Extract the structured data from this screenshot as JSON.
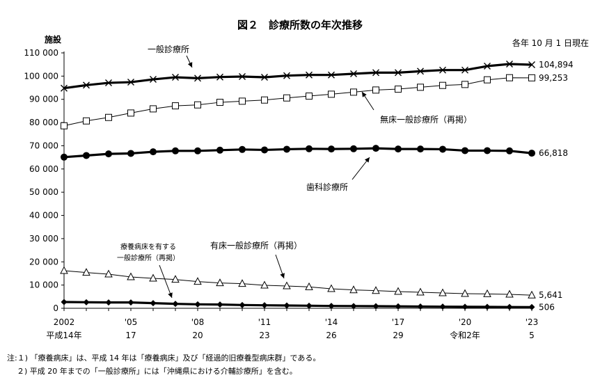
{
  "chart_data": {
    "type": "line",
    "title": "図２　診療所数の年次推移",
    "ylabel": "施設",
    "date_note": "各年 10 月 1 日現在",
    "ylim": [
      0,
      110000
    ],
    "yticks": [
      0,
      10000,
      20000,
      30000,
      40000,
      50000,
      60000,
      70000,
      80000,
      90000,
      100000,
      110000
    ],
    "ytick_labels": [
      "0",
      "10 000",
      "20 000",
      "30 000",
      "40 000",
      "50 000",
      "60 000",
      "70 000",
      "80 000",
      "90 000",
      "100 000",
      "110 000"
    ],
    "x": [
      2002,
      2003,
      2004,
      2005,
      2006,
      2007,
      2008,
      2009,
      2010,
      2011,
      2012,
      2013,
      2014,
      2015,
      2016,
      2017,
      2018,
      2019,
      2020,
      2021,
      2022,
      2023
    ],
    "xtick_labels_top": [
      {
        "x": 2002,
        "label": "2002"
      },
      {
        "x": 2005,
        "label": "'05"
      },
      {
        "x": 2008,
        "label": "'08"
      },
      {
        "x": 2011,
        "label": "'11"
      },
      {
        "x": 2014,
        "label": "'14"
      },
      {
        "x": 2017,
        "label": "'17"
      },
      {
        "x": 2020,
        "label": "'20"
      },
      {
        "x": 2023,
        "label": "'23"
      }
    ],
    "xtick_labels_bottom": [
      {
        "x": 2002,
        "label": "平成14年"
      },
      {
        "x": 2005,
        "label": "17"
      },
      {
        "x": 2008,
        "label": "20"
      },
      {
        "x": 2011,
        "label": "23"
      },
      {
        "x": 2014,
        "label": "26"
      },
      {
        "x": 2017,
        "label": "29"
      },
      {
        "x": 2020,
        "label": "令和2年"
      },
      {
        "x": 2023,
        "label": "5"
      }
    ],
    "series": [
      {
        "name": "一般診療所",
        "marker": "x",
        "values": [
          94800,
          96100,
          97100,
          97400,
          98600,
          99500,
          99100,
          99600,
          99800,
          99500,
          100200,
          100500,
          100500,
          101000,
          101500,
          101500,
          102100,
          102600,
          102600,
          104300,
          105200,
          104894
        ],
        "end_label": "104,894"
      },
      {
        "name": "無床一般診療所（再掲）",
        "marker": "square",
        "values": [
          78600,
          80700,
          82200,
          84100,
          85900,
          87200,
          87600,
          88700,
          89200,
          89700,
          90600,
          91400,
          92200,
          93100,
          94000,
          94400,
          95200,
          96000,
          96400,
          98400,
          99300,
          99253
        ],
        "end_label": "99,253"
      },
      {
        "name": "歯科診療所",
        "marker": "circle",
        "values": [
          65100,
          65800,
          66500,
          66700,
          67400,
          67800,
          67800,
          68100,
          68400,
          68200,
          68500,
          68700,
          68600,
          68700,
          68900,
          68600,
          68600,
          68500,
          67900,
          67900,
          67800,
          66818
        ],
        "end_label": "66,818"
      },
      {
        "name": "有床一般診療所（再掲）",
        "marker": "triangle",
        "values": [
          16200,
          15400,
          14700,
          13500,
          12900,
          12400,
          11500,
          10900,
          10600,
          9900,
          9600,
          9200,
          8400,
          7900,
          7600,
          7200,
          6900,
          6600,
          6300,
          6200,
          6000,
          5641
        ],
        "end_label": "5,641"
      },
      {
        "name": "療養病床を有する一般診療所（再掲）",
        "marker": "diamond",
        "values": [
          2700,
          2600,
          2500,
          2500,
          2200,
          1900,
          1700,
          1600,
          1400,
          1300,
          1200,
          1100,
          1000,
          950,
          900,
          830,
          750,
          700,
          640,
          600,
          550,
          506
        ],
        "end_label": "506"
      }
    ],
    "annotations": [
      {
        "text": "一般診療所"
      },
      {
        "text": "無床一般診療所（再掲）"
      },
      {
        "text": "歯科診療所"
      },
      {
        "text": "有床一般診療所（再掲）"
      },
      {
        "text": "療養病床を有する"
      },
      {
        "text": "一般診療所（再掲）"
      }
    ],
    "grid": false,
    "legend": "none"
  },
  "notes": {
    "note1": "注:１) 「療養病床」は、平成 14 年は「療養病床」及び「経過的旧療養型病床群」である。",
    "note2": "２) 平成 20 年までの「一般診療所」には「沖縄県における介輔診療所」を含む。"
  }
}
